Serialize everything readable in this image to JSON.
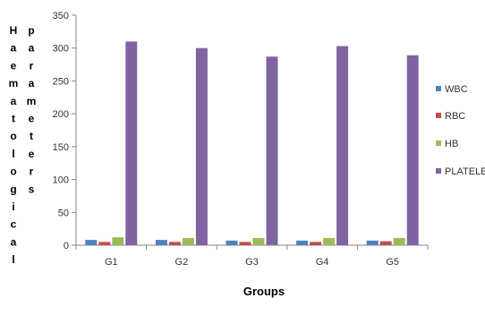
{
  "chart_data": {
    "type": "bar",
    "categories": [
      "G1",
      "G2",
      "G3",
      "G4",
      "G5"
    ],
    "series": [
      {
        "name": "WBC",
        "values": [
          8,
          8,
          7,
          7,
          7
        ],
        "color": "#4F81BD"
      },
      {
        "name": "RBC",
        "values": [
          5,
          5,
          5,
          5,
          6
        ],
        "color": "#C0504D"
      },
      {
        "name": "HB",
        "values": [
          12,
          11,
          11,
          11,
          11
        ],
        "color": "#9BBB59"
      },
      {
        "name": "PLATELET",
        "values": [
          310,
          300,
          287,
          303,
          289
        ],
        "color": "#8064A2"
      }
    ],
    "title": "",
    "xlabel": "Groups",
    "ylabel_col1": "Haematological",
    "ylabel_col2": "parameters",
    "ylim": [
      0,
      350
    ],
    "yticks": [
      0,
      50,
      100,
      150,
      200,
      250,
      300,
      350
    ],
    "grid": false,
    "legend_position": "right"
  }
}
